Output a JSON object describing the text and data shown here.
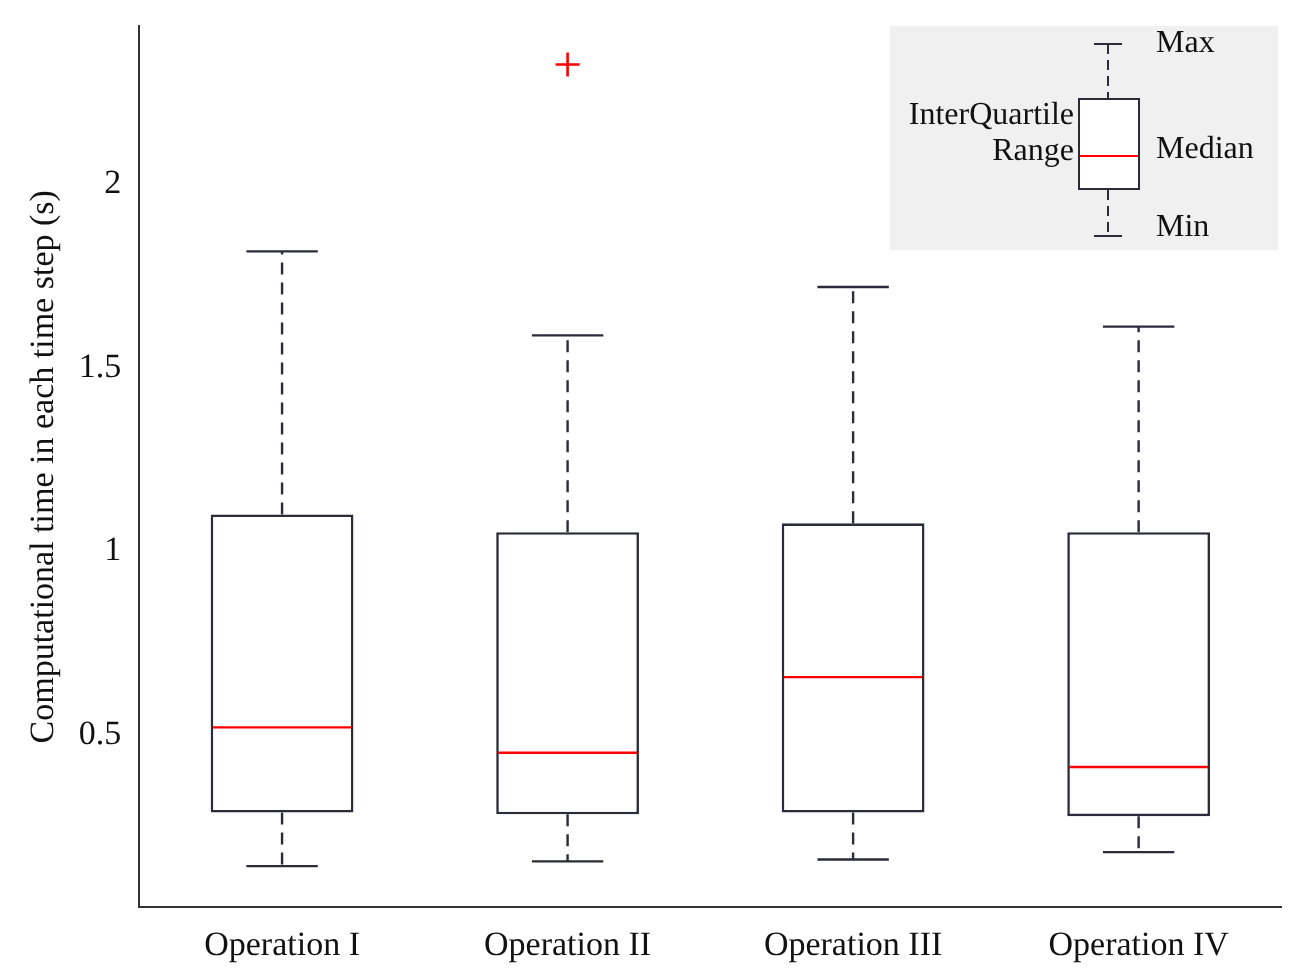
{
  "chart_data": {
    "type": "box",
    "ylabel": "Computational time in each time step (s)",
    "categories": [
      "Operation I",
      "Operation II",
      "Operation III",
      "Operation IV"
    ],
    "boxes": [
      {
        "low": 0.142,
        "q1": 0.288,
        "median": 0.52,
        "q3": 1.1,
        "high": 1.817
      },
      {
        "low": 0.155,
        "q1": 0.283,
        "median": 0.451,
        "q3": 1.052,
        "high": 1.588,
        "outliers": [
          2.326
        ]
      },
      {
        "low": 0.16,
        "q1": 0.288,
        "median": 0.657,
        "q3": 1.076,
        "high": 1.72
      },
      {
        "low": 0.18,
        "q1": 0.278,
        "median": 0.412,
        "q3": 1.052,
        "high": 1.612
      }
    ],
    "color": "#2b2b3a",
    "ylim": [
      0.03,
      2.43
    ],
    "yticks": [
      0.5,
      1,
      1.5,
      2
    ],
    "grid": false,
    "legend": false,
    "marker": "cross",
    "annotations": [
      "Max",
      "InterQuartile Range",
      "Median",
      "Min"
    ]
  }
}
